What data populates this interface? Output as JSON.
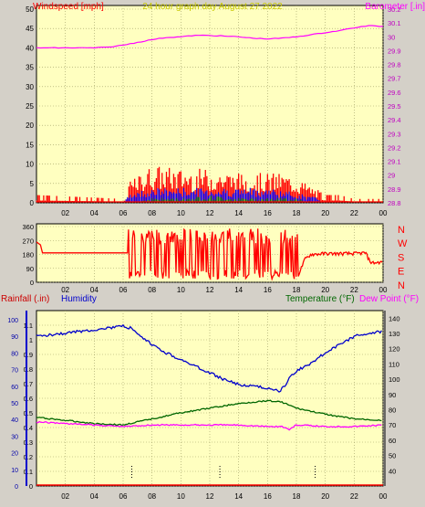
{
  "header": {
    "title": "24 hour graph day   August 27 2022",
    "left_label": "Windspeed [mph]",
    "right_label": "Barometer [.in]"
  },
  "colors": {
    "panel_bg": "#ffffc0",
    "grid": "#9b9b60",
    "wind": "#ff0000",
    "gust_blue": "#0000ff",
    "avg_green": "#008000",
    "barometer": "#ff00ff",
    "humidity": "#0000cc",
    "temperature": "#006600",
    "dew_point": "#ff00ff",
    "rain": "#ff0000",
    "title": "#c8c800"
  },
  "chart_data": [
    {
      "type": "line",
      "panel": "wind_barometer",
      "title": "24 hour graph day   August 27 2022",
      "x_ticks": [
        "02",
        "04",
        "06",
        "08",
        "10",
        "12",
        "14",
        "16",
        "18",
        "20",
        "22",
        "00"
      ],
      "left_axis": {
        "label": "Windspeed [mph]",
        "range": [
          0,
          50
        ],
        "ticks": [
          0,
          5,
          10,
          15,
          20,
          25,
          30,
          35,
          40,
          45,
          50
        ]
      },
      "right_axis": {
        "label": "Barometer [.in]",
        "range": [
          28.8,
          30.2
        ],
        "ticks": [
          "28.8",
          "28.9",
          "29",
          "29.1",
          "29.2",
          "29.3",
          "29.4",
          "29.5",
          "29.6",
          "29.7",
          "29.8",
          "29.9",
          "30",
          "30.1",
          "30.2"
        ]
      },
      "series": [
        {
          "name": "Barometer [.in]",
          "axis": "right",
          "x": [
            0,
            2,
            4,
            5,
            6,
            7,
            8,
            9,
            10,
            11,
            12,
            13,
            14,
            15,
            16,
            17,
            18,
            19,
            20,
            21,
            22,
            23,
            24
          ],
          "values": [
            29.92,
            29.92,
            29.92,
            29.925,
            29.94,
            29.96,
            29.98,
            29.995,
            30.0,
            30.01,
            30.01,
            30.005,
            30.0,
            29.99,
            29.985,
            29.99,
            30.0,
            30.015,
            30.03,
            30.045,
            30.065,
            30.08,
            30.075
          ]
        },
        {
          "name": "Wind gust",
          "axis": "left",
          "x": [
            0,
            6,
            6.5,
            8,
            10,
            12,
            14,
            16,
            17,
            18,
            20,
            21,
            22,
            24
          ],
          "values": [
            2,
            1,
            5,
            9,
            8,
            8,
            7,
            7,
            7,
            6,
            2,
            2,
            1,
            1
          ]
        },
        {
          "name": "Wind average",
          "axis": "left",
          "x": [
            0,
            6,
            6.5,
            8,
            10,
            12,
            14,
            16,
            18,
            19.5,
            20,
            24
          ],
          "values": [
            0,
            0,
            2,
            3,
            3,
            3,
            3,
            3,
            2,
            1,
            0,
            0
          ]
        },
        {
          "name": "Wind low",
          "axis": "left",
          "x": [
            0,
            6.5,
            8,
            10,
            12,
            14,
            16,
            18,
            19.5,
            24
          ],
          "values": [
            0,
            0,
            1,
            1,
            1.5,
            1,
            1,
            1,
            0,
            0
          ]
        }
      ]
    },
    {
      "type": "line",
      "panel": "wind_direction",
      "x_ticks": [
        "02",
        "04",
        "06",
        "08",
        "10",
        "12",
        "14",
        "16",
        "18",
        "20",
        "22",
        "00"
      ],
      "left_axis": {
        "range": [
          0,
          360
        ],
        "ticks": [
          0,
          90,
          180,
          270,
          360
        ]
      },
      "right_axis": {
        "ticks": [
          "N",
          "W",
          "S",
          "E",
          "N"
        ]
      },
      "series": [
        {
          "name": "Wind direction",
          "axis": "left",
          "x": [
            0,
            0.3,
            0.4,
            1,
            3,
            5,
            6.3,
            6.4,
            18.1,
            18.6,
            19,
            20,
            21,
            22,
            22.8,
            23,
            23.2,
            24
          ],
          "values": [
            260,
            240,
            190,
            190,
            190,
            190,
            190,
            30,
            40,
            150,
            180,
            185,
            185,
            185,
            190,
            150,
            125,
            130
          ]
        }
      ]
    },
    {
      "type": "line",
      "panel": "rain_humidity_temperature",
      "x_ticks": [
        "02",
        "04",
        "06",
        "08",
        "10",
        "12",
        "14",
        "16",
        "18",
        "20",
        "22",
        "00"
      ],
      "left_axis": {
        "label": "Rainfall (.in)",
        "range": [
          0,
          1.2
        ],
        "ticks": [
          "0",
          "0.1",
          "0.2",
          "0.3",
          "0.4",
          "0.5",
          "0.6",
          "0.7",
          "0.8",
          "0.9",
          "1",
          "1.1"
        ]
      },
      "humidity_axis": {
        "label": "Humidity",
        "range": [
          0,
          100
        ],
        "ticks": [
          0,
          10,
          20,
          30,
          40,
          50,
          60,
          70,
          80,
          90,
          100
        ]
      },
      "right_axis": {
        "label": "Temperature (°F)",
        "range": [
          30,
          145
        ],
        "ticks": [
          40,
          50,
          60,
          70,
          80,
          90,
          100,
          110,
          120,
          130,
          140
        ]
      },
      "right_label_2": "Dew Point (°F)",
      "series": [
        {
          "name": "Humidity",
          "axis": "humidity",
          "x": [
            0,
            1,
            2,
            3,
            4,
            5,
            6,
            6.5,
            7,
            8,
            9,
            10,
            11,
            12,
            13,
            14,
            15,
            16,
            16.8,
            17.2,
            17.5,
            18,
            19,
            20,
            21,
            22,
            23,
            24
          ],
          "values": [
            90,
            91,
            92,
            93,
            94,
            95,
            96,
            95,
            91,
            85,
            80,
            76,
            72,
            68,
            64,
            61,
            60,
            59,
            57,
            60,
            65,
            69,
            74,
            80,
            85,
            90,
            92,
            93
          ]
        },
        {
          "name": "Temperature (°F)",
          "axis": "right",
          "x": [
            0,
            2,
            4,
            6,
            7,
            8,
            10,
            12,
            14,
            16,
            17,
            18,
            20,
            22,
            24
          ],
          "values": [
            75,
            73,
            71,
            70,
            72,
            74,
            78,
            81,
            84,
            86,
            85,
            81,
            77,
            74,
            73
          ]
        },
        {
          "name": "Dew Point (°F)",
          "axis": "right",
          "x": [
            0,
            2,
            4,
            6,
            8,
            10,
            12,
            14,
            16,
            17,
            17.5,
            18,
            20,
            22,
            24
          ],
          "values": [
            72,
            71,
            70,
            69,
            70,
            70,
            70,
            70,
            69,
            69,
            67,
            70,
            69,
            69,
            70
          ]
        },
        {
          "name": "Rainfall (.in)",
          "axis": "left",
          "x": [
            0,
            24
          ],
          "values": [
            0,
            0
          ]
        }
      ]
    }
  ]
}
